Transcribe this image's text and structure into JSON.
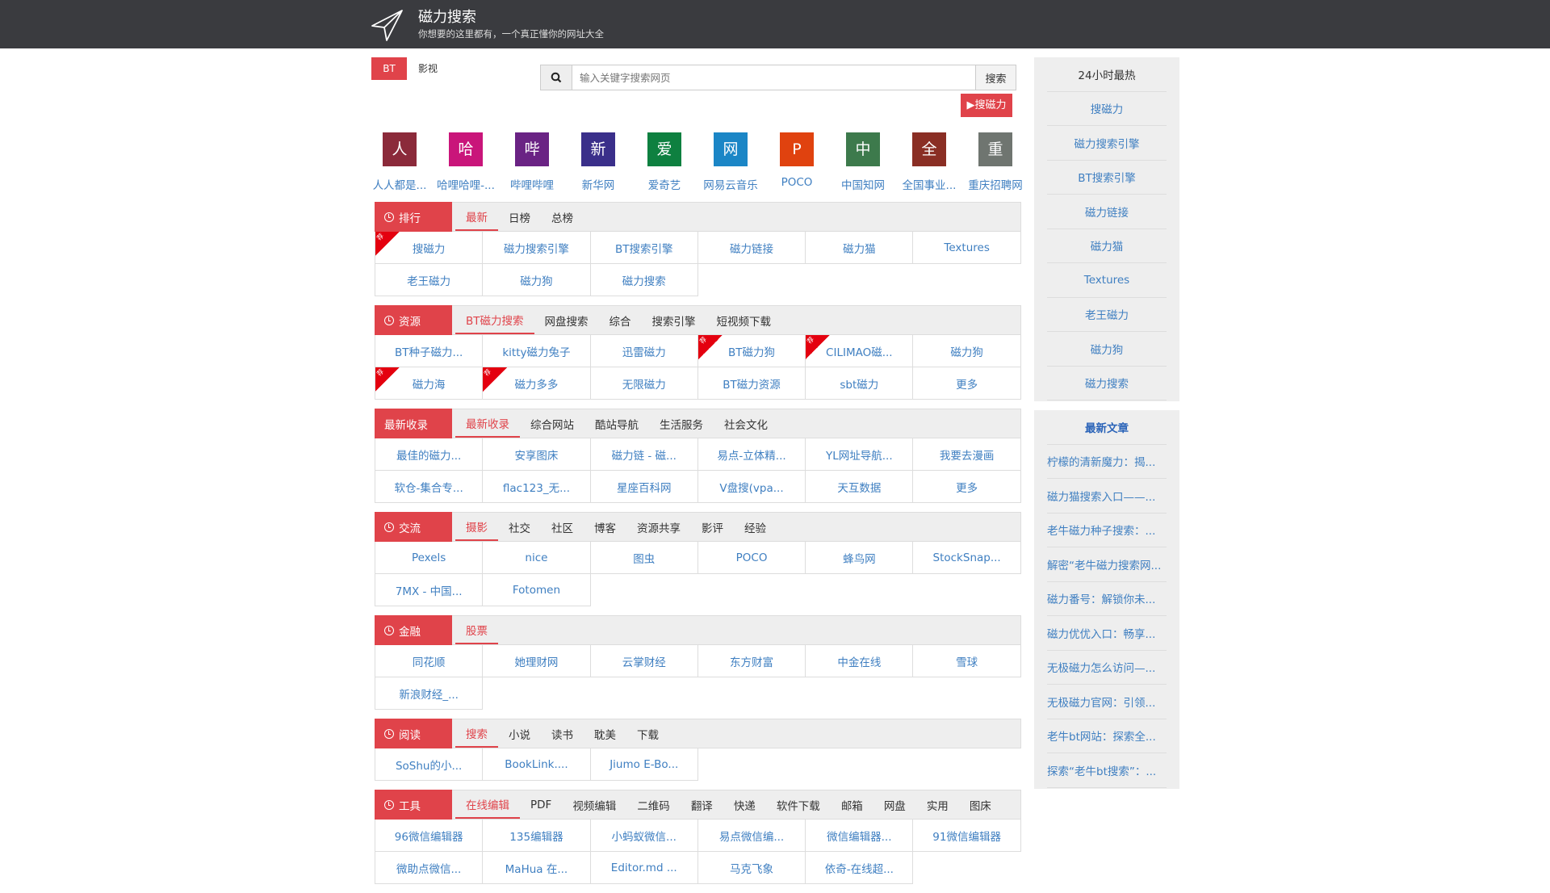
{
  "header": {
    "title": "磁力搜索",
    "subtitle": "你想要的这里都有，一个真正懂你的网址大全"
  },
  "search_tabs": [
    "BT",
    "影视"
  ],
  "search": {
    "placeholder": "输入关键字搜索网页",
    "button": "搜索",
    "quick_button": "▶搜磁力"
  },
  "colors": {
    "accent": "#e0434a",
    "link": "#3f7fc1",
    "header_bg": "#3a3b3f"
  },
  "tiles": [
    {
      "char": "人",
      "label": "人人都是...",
      "color": "#8b2a3a"
    },
    {
      "char": "哈",
      "label": "哈哩哈哩-...",
      "color": "#c9157a"
    },
    {
      "char": "哔",
      "label": "哔哩哔哩",
      "color": "#6a2384"
    },
    {
      "char": "新",
      "label": "新华网",
      "color": "#3a2f8a"
    },
    {
      "char": "爱",
      "label": "爱奇艺",
      "color": "#0e8040"
    },
    {
      "char": "网",
      "label": "网易云音乐",
      "color": "#1b86c6"
    },
    {
      "char": "P",
      "label": "POCO",
      "color": "#e0420f"
    },
    {
      "char": "中",
      "label": "中国知网",
      "color": "#3d7a4c"
    },
    {
      "char": "全",
      "label": "全国事业...",
      "color": "#8a2e24"
    },
    {
      "char": "重",
      "label": "重庆招聘网",
      "color": "#6f7570"
    }
  ],
  "hot_badge": "荐",
  "sections": [
    {
      "label": "排行",
      "clock": true,
      "tabs": [
        "最新",
        "日榜",
        "总榜"
      ],
      "items": [
        {
          "t": "搜磁力",
          "hot": true
        },
        {
          "t": "磁力搜索引擎"
        },
        {
          "t": "BT搜索引擎"
        },
        {
          "t": "磁力链接"
        },
        {
          "t": "磁力猫"
        },
        {
          "t": "Textures"
        },
        {
          "t": "老王磁力"
        },
        {
          "t": "磁力狗"
        },
        {
          "t": "磁力搜索"
        }
      ]
    },
    {
      "label": "资源",
      "clock": true,
      "tabs": [
        "BT磁力搜索",
        "网盘搜索",
        "综合",
        "搜索引擎",
        "短视频下载"
      ],
      "items": [
        {
          "t": "BT种子磁力..."
        },
        {
          "t": "kitty磁力兔子"
        },
        {
          "t": "迅雷磁力"
        },
        {
          "t": "BT磁力狗",
          "hot": true
        },
        {
          "t": "CILIMAO磁...",
          "hot": true
        },
        {
          "t": "磁力狗"
        },
        {
          "t": "磁力海",
          "hot": true
        },
        {
          "t": "磁力多多",
          "hot": true
        },
        {
          "t": "无限磁力"
        },
        {
          "t": "BT磁力资源"
        },
        {
          "t": "sbt磁力"
        },
        {
          "t": "更多"
        }
      ]
    },
    {
      "label": "最新收录",
      "clock": false,
      "tabs": [
        "最新收录",
        "综合网站",
        "酷站导航",
        "生活服务",
        "社会文化"
      ],
      "items": [
        {
          "t": "最佳的磁力..."
        },
        {
          "t": "安享图床"
        },
        {
          "t": "磁力链 - 磁..."
        },
        {
          "t": "易点-立体精..."
        },
        {
          "t": "YL网址导航..."
        },
        {
          "t": "我要去漫画"
        },
        {
          "t": "软仓-集合专..."
        },
        {
          "t": "flac123_无..."
        },
        {
          "t": "星座百科网"
        },
        {
          "t": "V盘搜(vpa..."
        },
        {
          "t": "天互数据"
        },
        {
          "t": "更多"
        }
      ]
    },
    {
      "label": "交流",
      "clock": true,
      "tabs": [
        "摄影",
        "社交",
        "社区",
        "博客",
        "资源共享",
        "影评",
        "经验"
      ],
      "items": [
        {
          "t": "Pexels"
        },
        {
          "t": "nice"
        },
        {
          "t": "图虫"
        },
        {
          "t": "POCO"
        },
        {
          "t": "蜂鸟网"
        },
        {
          "t": "StockSnap..."
        },
        {
          "t": "7MX - 中国..."
        },
        {
          "t": "Fotomen"
        }
      ]
    },
    {
      "label": "金融",
      "clock": true,
      "tabs": [
        "股票"
      ],
      "items": [
        {
          "t": "同花顺"
        },
        {
          "t": "她理财网"
        },
        {
          "t": "云掌财经"
        },
        {
          "t": "东方财富"
        },
        {
          "t": "中金在线"
        },
        {
          "t": "雪球"
        },
        {
          "t": "新浪财经_..."
        }
      ]
    },
    {
      "label": "阅读",
      "clock": true,
      "tabs": [
        "搜索",
        "小说",
        "读书",
        "耽美",
        "下载"
      ],
      "items": [
        {
          "t": "SoShu的小..."
        },
        {
          "t": "BookLink...."
        },
        {
          "t": "Jiumo E-Bo..."
        }
      ]
    },
    {
      "label": "工具",
      "clock": true,
      "tabs": [
        "在线编辑",
        "PDF",
        "视频编辑",
        "二维码",
        "翻译",
        "快递",
        "软件下载",
        "邮箱",
        "网盘",
        "实用",
        "图床"
      ],
      "items": [
        {
          "t": "96微信编辑器"
        },
        {
          "t": "135编辑器"
        },
        {
          "t": "小蚂蚁微信..."
        },
        {
          "t": "易点微信编..."
        },
        {
          "t": "微信编辑器..."
        },
        {
          "t": "91微信编辑器"
        },
        {
          "t": "微助点微信..."
        },
        {
          "t": "MaHua 在..."
        },
        {
          "t": "Editor.md ..."
        },
        {
          "t": "马克飞象"
        },
        {
          "t": "依奇-在线超..."
        }
      ]
    }
  ],
  "sidebar": {
    "hot": {
      "title": "24小时最热",
      "items": [
        "搜磁力",
        "磁力搜索引擎",
        "BT搜索引擎",
        "磁力链接",
        "磁力猫",
        "Textures",
        "老王磁力",
        "磁力狗",
        "磁力搜索"
      ]
    },
    "articles": {
      "title": "最新文章",
      "items": [
        "柠檬的清新魔力：揭...",
        "磁力猫搜索入口——...",
        "老牛磁力种子搜索：...",
        "解密“老牛磁力搜索网...",
        "磁力番号：解锁你未...",
        "磁力优优入口：畅享...",
        "无极磁力怎么访问—...",
        "无极磁力官网：引领...",
        "老牛bt网站：探索全...",
        "探索“老牛bt搜索”：..."
      ]
    }
  }
}
